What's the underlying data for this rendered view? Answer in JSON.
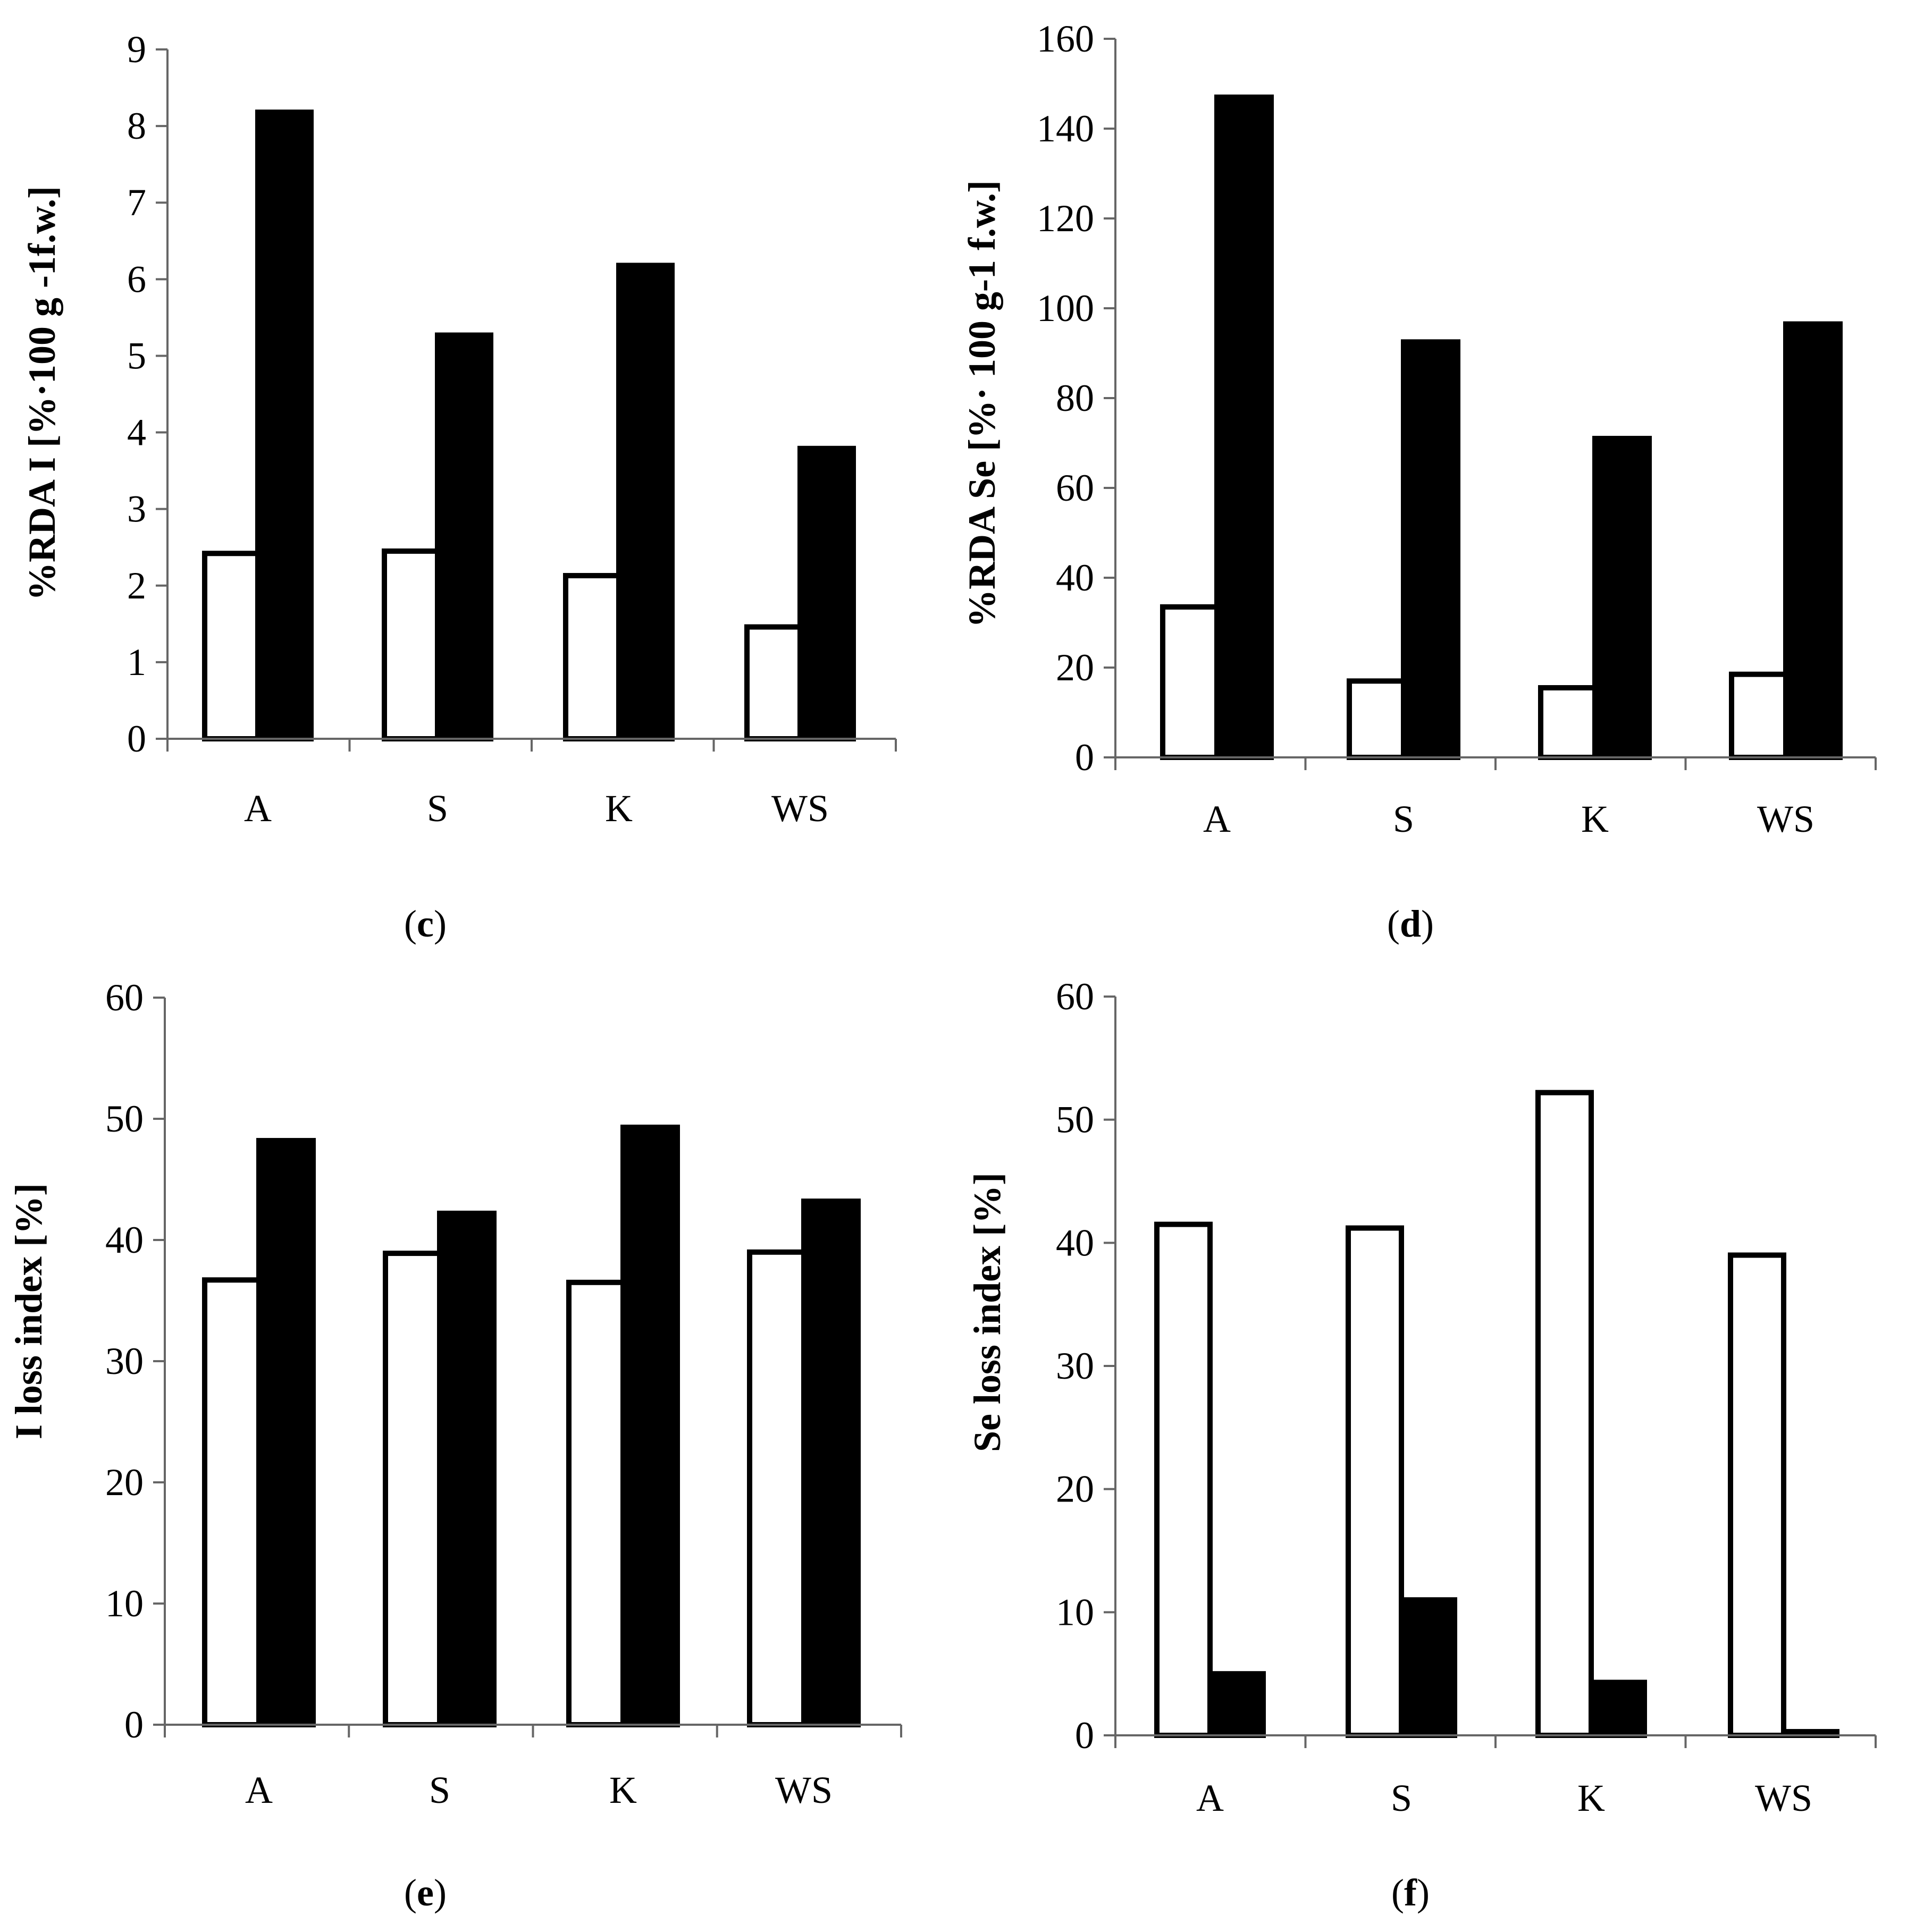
{
  "chart_data": [
    {
      "id": "c",
      "type": "bar",
      "panel_label": "c",
      "ylabel": "%RDA I [%·100 g -1f.w.]",
      "categories": [
        "A",
        "S",
        "K",
        "WS"
      ],
      "ylim": [
        0,
        9
      ],
      "ytick_step": 1,
      "series": [
        {
          "name": "white",
          "values": [
            2.42,
            2.45,
            2.13,
            1.46
          ],
          "fill": "#ffffff"
        },
        {
          "name": "black",
          "values": [
            8.18,
            5.27,
            6.18,
            3.79
          ],
          "fill": "#000000"
        }
      ]
    },
    {
      "id": "d",
      "type": "bar",
      "panel_label": "d",
      "ylabel": "%RDA Se [%· 100 g-1 f.w.]",
      "categories": [
        "A",
        "S",
        "K",
        "WS"
      ],
      "ylim": [
        0,
        160
      ],
      "ytick_step": 20,
      "series": [
        {
          "name": "white",
          "values": [
            33.5,
            17.0,
            15.5,
            18.5
          ],
          "fill": "#ffffff"
        },
        {
          "name": "black",
          "values": [
            147.0,
            92.5,
            71.0,
            96.5
          ],
          "fill": "#000000"
        }
      ]
    },
    {
      "id": "e",
      "type": "bar",
      "panel_label": "e",
      "ylabel": "I loss index [%]",
      "categories": [
        "A",
        "S",
        "K",
        "WS"
      ],
      "ylim": [
        0,
        60
      ],
      "ytick_step": 10,
      "series": [
        {
          "name": "white",
          "values": [
            36.7,
            38.9,
            36.5,
            39.0
          ],
          "fill": "#ffffff"
        },
        {
          "name": "black",
          "values": [
            48.2,
            42.2,
            49.3,
            43.2
          ],
          "fill": "#000000"
        }
      ]
    },
    {
      "id": "f",
      "type": "bar",
      "panel_label": "f",
      "ylabel": "Se loss index [%]",
      "categories": [
        "A",
        "S",
        "K",
        "WS"
      ],
      "ylim": [
        0,
        60
      ],
      "ytick_step": 10,
      "series": [
        {
          "name": "white",
          "values": [
            41.5,
            41.2,
            52.2,
            39.0
          ],
          "fill": "#ffffff"
        },
        {
          "name": "black",
          "values": [
            5.0,
            11.0,
            4.3,
            0.3
          ],
          "fill": "#000000"
        }
      ]
    }
  ]
}
